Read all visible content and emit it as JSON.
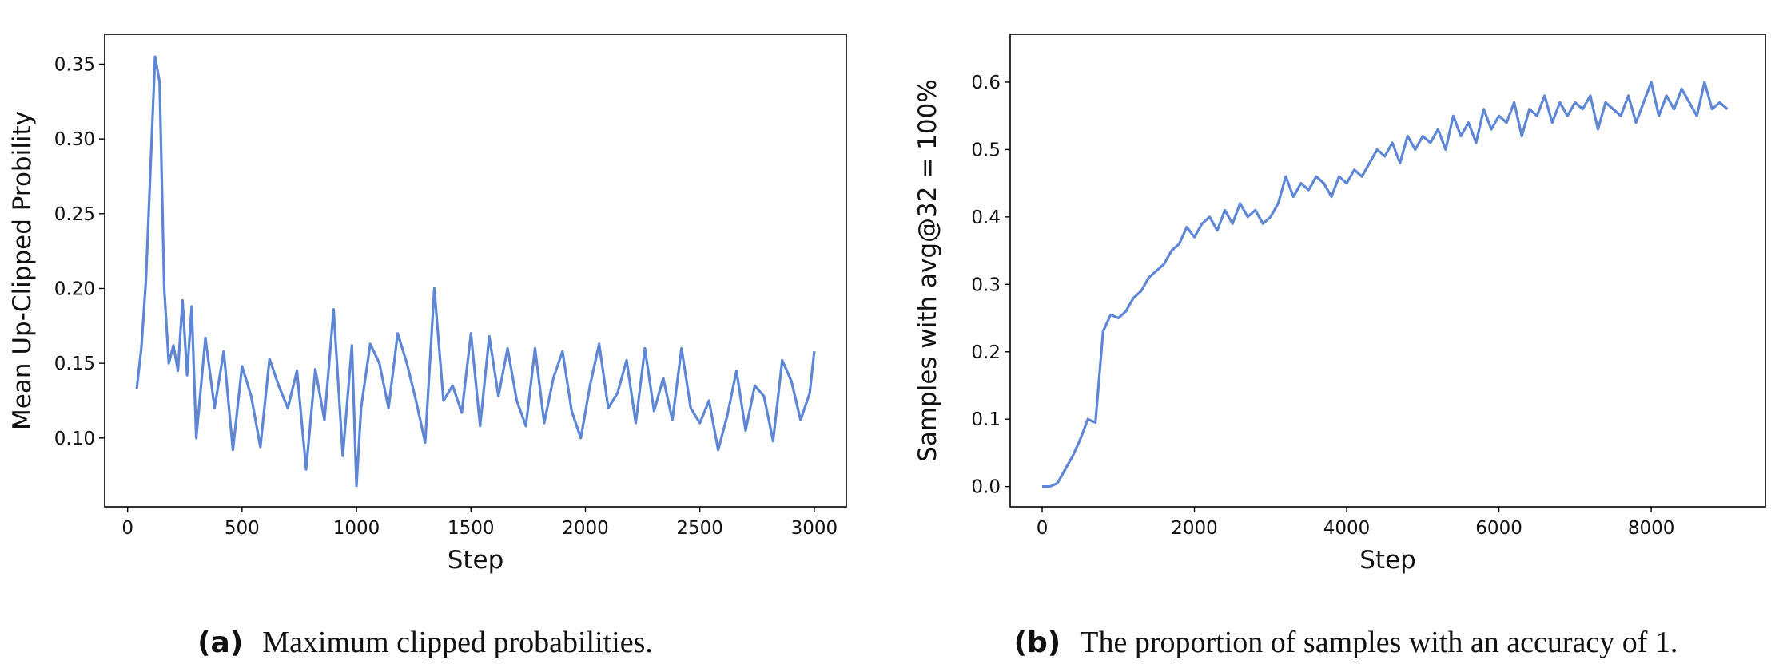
{
  "chart_data": [
    {
      "type": "line",
      "xlabel": "Step",
      "ylabel": "Mean Up-Clipped Probility",
      "caption_tag": "(a)",
      "caption": "Maximum clipped probabilities.",
      "xlim": [
        -100,
        3140
      ],
      "ylim": [
        0.054,
        0.37
      ],
      "xticks": [
        0,
        500,
        1000,
        1500,
        2000,
        2500,
        3000
      ],
      "yticks": [
        {
          "value": 0.1,
          "label": "0.10"
        },
        {
          "value": 0.15,
          "label": "0.15"
        },
        {
          "value": 0.2,
          "label": "0.20"
        },
        {
          "value": 0.25,
          "label": "0.25"
        },
        {
          "value": 0.3,
          "label": "0.30"
        },
        {
          "value": 0.35,
          "label": "0.35"
        }
      ],
      "x": [
        40,
        60,
        80,
        100,
        120,
        140,
        160,
        180,
        200,
        220,
        240,
        260,
        280,
        300,
        340,
        380,
        420,
        460,
        500,
        540,
        580,
        620,
        660,
        700,
        740,
        780,
        820,
        860,
        900,
        940,
        980,
        1000,
        1020,
        1060,
        1100,
        1140,
        1180,
        1220,
        1260,
        1300,
        1340,
        1380,
        1420,
        1460,
        1500,
        1540,
        1580,
        1620,
        1660,
        1700,
        1740,
        1780,
        1820,
        1860,
        1900,
        1940,
        1980,
        2020,
        2060,
        2100,
        2140,
        2180,
        2220,
        2260,
        2300,
        2340,
        2380,
        2420,
        2460,
        2500,
        2540,
        2580,
        2620,
        2660,
        2700,
        2740,
        2780,
        2820,
        2860,
        2900,
        2940,
        2980,
        3000
      ],
      "series": [
        {
          "color": "#5d87d6",
          "values": [
            0.133,
            0.16,
            0.205,
            0.28,
            0.355,
            0.338,
            0.2,
            0.15,
            0.162,
            0.145,
            0.192,
            0.142,
            0.188,
            0.1,
            0.167,
            0.12,
            0.158,
            0.092,
            0.148,
            0.128,
            0.094,
            0.153,
            0.135,
            0.12,
            0.145,
            0.079,
            0.146,
            0.112,
            0.186,
            0.088,
            0.162,
            0.068,
            0.12,
            0.163,
            0.15,
            0.12,
            0.17,
            0.15,
            0.125,
            0.097,
            0.2,
            0.125,
            0.135,
            0.117,
            0.17,
            0.108,
            0.168,
            0.128,
            0.16,
            0.125,
            0.108,
            0.16,
            0.11,
            0.14,
            0.158,
            0.118,
            0.1,
            0.135,
            0.163,
            0.12,
            0.13,
            0.152,
            0.11,
            0.16,
            0.118,
            0.14,
            0.112,
            0.16,
            0.12,
            0.11,
            0.125,
            0.092,
            0.115,
            0.145,
            0.105,
            0.135,
            0.128,
            0.098,
            0.152,
            0.138,
            0.112,
            0.13,
            0.158
          ]
        }
      ]
    },
    {
      "type": "line",
      "xlabel": "Step",
      "ylabel": "Samples with avg@32 = 100%",
      "caption_tag": "(b)",
      "caption": "The proportion of samples with an accuracy of 1.",
      "xlim": [
        -420,
        9500
      ],
      "ylim": [
        -0.03,
        0.671
      ],
      "xticks": [
        0,
        2000,
        4000,
        6000,
        8000
      ],
      "yticks": [
        {
          "value": 0,
          "label": "0.0"
        },
        0.1,
        0.2,
        0.3,
        0.4,
        0.5,
        0.6
      ],
      "x": [
        0,
        100,
        200,
        300,
        400,
        500,
        600,
        700,
        800,
        900,
        1000,
        1100,
        1200,
        1300,
        1400,
        1500,
        1600,
        1700,
        1800,
        1900,
        2000,
        2100,
        2200,
        2300,
        2400,
        2500,
        2600,
        2700,
        2800,
        2900,
        3000,
        3100,
        3200,
        3300,
        3400,
        3500,
        3600,
        3700,
        3800,
        3900,
        4000,
        4100,
        4200,
        4300,
        4400,
        4500,
        4600,
        4700,
        4800,
        4900,
        5000,
        5100,
        5200,
        5300,
        5400,
        5500,
        5600,
        5700,
        5800,
        5900,
        6000,
        6100,
        6200,
        6300,
        6400,
        6500,
        6600,
        6700,
        6800,
        6900,
        7000,
        7100,
        7200,
        7300,
        7400,
        7500,
        7600,
        7700,
        7800,
        7900,
        8000,
        8100,
        8200,
        8300,
        8400,
        8500,
        8600,
        8700,
        8800,
        8900,
        9000
      ],
      "series": [
        {
          "color": "#5d87d6",
          "values": [
            0.0,
            0.0,
            0.005,
            0.025,
            0.045,
            0.07,
            0.1,
            0.095,
            0.23,
            0.255,
            0.25,
            0.26,
            0.28,
            0.29,
            0.31,
            0.32,
            0.33,
            0.35,
            0.36,
            0.385,
            0.37,
            0.39,
            0.4,
            0.38,
            0.41,
            0.39,
            0.42,
            0.4,
            0.41,
            0.39,
            0.4,
            0.42,
            0.46,
            0.43,
            0.45,
            0.44,
            0.46,
            0.45,
            0.43,
            0.46,
            0.45,
            0.47,
            0.46,
            0.48,
            0.5,
            0.49,
            0.51,
            0.48,
            0.52,
            0.5,
            0.52,
            0.51,
            0.53,
            0.5,
            0.55,
            0.52,
            0.54,
            0.51,
            0.56,
            0.53,
            0.55,
            0.54,
            0.57,
            0.52,
            0.56,
            0.55,
            0.58,
            0.54,
            0.57,
            0.55,
            0.57,
            0.56,
            0.58,
            0.53,
            0.57,
            0.56,
            0.55,
            0.58,
            0.54,
            0.57,
            0.6,
            0.55,
            0.58,
            0.56,
            0.59,
            0.57,
            0.55,
            0.6,
            0.56,
            0.57,
            0.56
          ]
        }
      ]
    }
  ]
}
